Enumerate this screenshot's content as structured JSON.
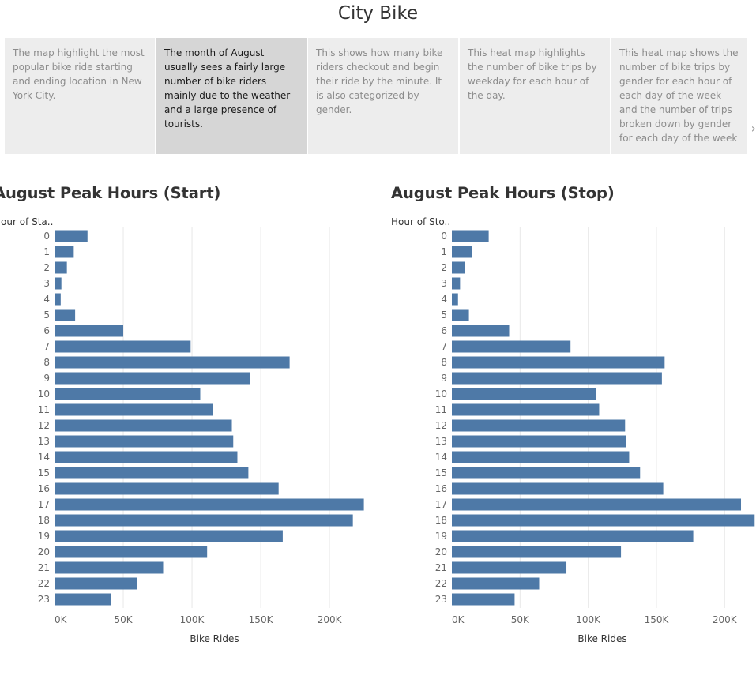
{
  "page": {
    "title": "City Bike"
  },
  "story_points": [
    {
      "text": "The map highlight the most popular bike ride starting and ending location in New York City.",
      "active": false
    },
    {
      "text": "The month of August usually sees a fairly large number of bike riders mainly due to the weather and a large presence of tourists.",
      "active": true
    },
    {
      "text": "This shows how many bike riders checkout and begin their ride by the minute. It is also categorized by gender.",
      "active": false
    },
    {
      "text": "This heat map highlights the number of bike trips by weekday for each hour of the day.",
      "active": false
    },
    {
      "text": "This heat map shows the number of bike trips by gender for each hour of each day of the week and the number of trips broken down by gender for each day of the week",
      "active": false
    }
  ],
  "nav": {
    "next_icon": "chevron-right-icon",
    "next_glyph": "›"
  },
  "colors": {
    "bar": "#4e79a7",
    "grid": "#e8e8e8"
  },
  "chart_data": [
    {
      "type": "bar",
      "orientation": "horizontal",
      "title": "August Peak Hours (Start)",
      "row_header": "Hour of Sta..",
      "xlabel": "Bike Rides",
      "categories": [
        "0",
        "1",
        "2",
        "3",
        "4",
        "5",
        "6",
        "7",
        "8",
        "9",
        "10",
        "11",
        "12",
        "13",
        "14",
        "15",
        "16",
        "17",
        "18",
        "19",
        "20",
        "21",
        "22",
        "23"
      ],
      "values": [
        24000,
        14000,
        9000,
        5000,
        4500,
        15000,
        50000,
        99000,
        171000,
        142000,
        106000,
        115000,
        129000,
        130000,
        133000,
        141000,
        163000,
        225000,
        217000,
        166000,
        111000,
        79000,
        60000,
        41000
      ],
      "xlim": [
        0,
        235000
      ],
      "xticks": [
        0,
        50000,
        100000,
        150000,
        200000
      ],
      "xtick_labels": [
        "0K",
        "50K",
        "100K",
        "150K",
        "200K"
      ],
      "grid": true
    },
    {
      "type": "bar",
      "orientation": "horizontal",
      "title": "August Peak Hours (Stop)",
      "row_header": "Hour of Sto..",
      "xlabel": "Bike Rides",
      "categories": [
        "0",
        "1",
        "2",
        "3",
        "4",
        "5",
        "6",
        "7",
        "8",
        "9",
        "10",
        "11",
        "12",
        "13",
        "14",
        "15",
        "16",
        "17",
        "18",
        "19",
        "20",
        "21",
        "22",
        "23"
      ],
      "values": [
        27000,
        15000,
        9500,
        6000,
        4500,
        12500,
        42000,
        87000,
        156000,
        154000,
        106000,
        108000,
        127000,
        128000,
        130000,
        138000,
        155000,
        212000,
        222000,
        177000,
        124000,
        84000,
        64000,
        46000
      ],
      "xlim": [
        0,
        223000
      ],
      "xticks": [
        0,
        50000,
        100000,
        150000,
        200000
      ],
      "xtick_labels": [
        "0K",
        "50K",
        "100K",
        "150K",
        "200K"
      ],
      "grid": true
    }
  ]
}
